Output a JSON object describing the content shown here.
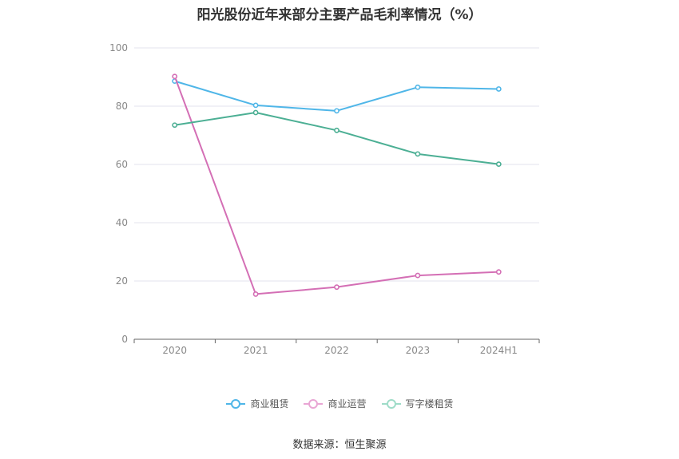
{
  "chart_data": {
    "type": "line",
    "title": "阳光股份近年来部分主要产品毛利率情况（%）",
    "categories": [
      "2020",
      "2021",
      "2022",
      "2023",
      "2024H1"
    ],
    "ylim": [
      0,
      100
    ],
    "yticks": [
      "0",
      "20",
      "40",
      "60",
      "80",
      "100"
    ],
    "grid": true,
    "legend_position": "bottom-center",
    "series": [
      {
        "name": "商业租赁",
        "color": "#4fb6e8",
        "values": [
          88.6,
          80.3,
          78.4,
          86.5,
          85.9
        ]
      },
      {
        "name": "商业运营",
        "color": "#d46fb5",
        "values": [
          90.2,
          15.5,
          17.9,
          21.9,
          23.1
        ]
      },
      {
        "name": "写字楼租赁",
        "color": "#4caf94",
        "values": [
          73.5,
          77.8,
          71.7,
          63.6,
          60.1
        ]
      }
    ],
    "source": "数据来源：恒生聚源"
  }
}
